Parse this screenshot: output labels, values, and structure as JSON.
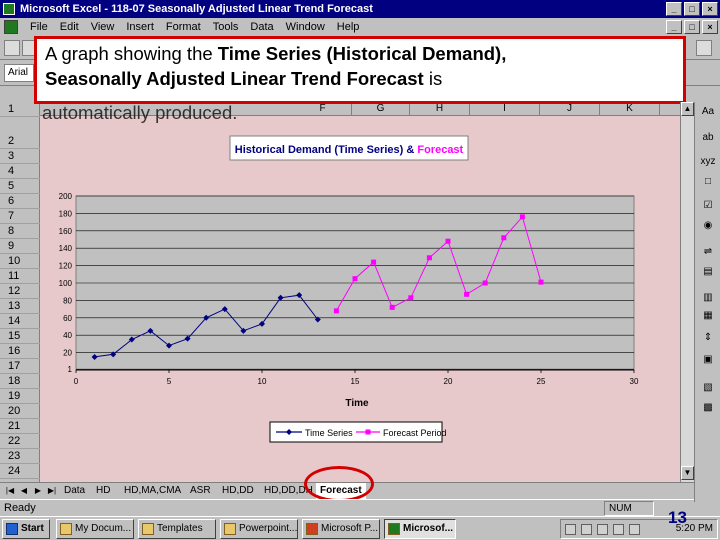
{
  "window": {
    "title": "Microsoft Excel - 118-07 Seasonally Adjusted Linear Trend Forecast",
    "min": "_",
    "max": "□",
    "close": "×"
  },
  "menu": [
    "File",
    "Edit",
    "View",
    "Insert",
    "Format",
    "Tools",
    "Data",
    "Window",
    "Help"
  ],
  "font_box": "Arial",
  "columns": [
    "F",
    "G",
    "H",
    "I",
    "J",
    "K"
  ],
  "rows": [
    "1",
    "2",
    "3",
    "4",
    "5",
    "6",
    "7",
    "8",
    "9",
    "10",
    "11",
    "12",
    "13",
    "14",
    "15",
    "16",
    "17",
    "18",
    "19",
    "20",
    "21",
    "22",
    "23",
    "24"
  ],
  "callout": {
    "line1_plain": "A graph showing the ",
    "line1_bold": "Time Series (Historical Demand),",
    "line2_bold": "Seasonally Adjusted Linear Trend Forecast",
    "line2_plain": " is",
    "line3": "automatically produced."
  },
  "drawing_tools": [
    "Aa",
    "ab",
    "xyz",
    "□",
    "☑",
    "◉",
    "⇌",
    "▤",
    "▥",
    "▦",
    "⇕",
    "▣",
    "▧",
    "▩"
  ],
  "sheet_tabs": [
    "Data",
    "HD",
    "HD,MA,CMA",
    "ASR",
    "HD,DD",
    "HD,DD,DH",
    "Forecast"
  ],
  "active_tab": "Forecast",
  "status": {
    "left": "Ready",
    "num": "NUM"
  },
  "taskbar": {
    "start": "Start",
    "items": [
      "My Docum...",
      "Templates",
      "Powerpoint...",
      "Microsoft P...",
      "Microsof..."
    ],
    "active_item": "Microsof...",
    "clock": "5:20 PM"
  },
  "slide_number": "13",
  "chart_data": {
    "type": "line",
    "title_part1": "Historical Demand (Time Series) & ",
    "title_part2": "Forecast",
    "xlabel": "Time",
    "ylabel": "",
    "xlim": [
      0,
      30
    ],
    "ylim": [
      0,
      200
    ],
    "xticks": [
      0,
      5,
      10,
      15,
      20,
      25,
      30
    ],
    "yticks": [
      1,
      20,
      40,
      60,
      80,
      100,
      120,
      140,
      160,
      180,
      200
    ],
    "grid": true,
    "legend_position": "bottom",
    "colors": {
      "time_series": "#000080",
      "forecast": "#ff00ff",
      "plot_bg": "#c0c0c0"
    },
    "series": [
      {
        "name": "Time Series",
        "x": [
          1,
          2,
          3,
          4,
          5,
          6,
          7,
          8,
          9,
          10,
          11,
          12,
          13
        ],
        "y": [
          15,
          18,
          35,
          45,
          28,
          36,
          60,
          70,
          45,
          53,
          83,
          86,
          58
        ]
      },
      {
        "name": "Forecast Period",
        "x": [
          14,
          15,
          16,
          17,
          18,
          19,
          20,
          21,
          22,
          23,
          24,
          25
        ],
        "y": [
          68,
          105,
          124,
          72,
          83,
          129,
          148,
          87,
          100,
          152,
          176,
          101
        ]
      }
    ]
  }
}
